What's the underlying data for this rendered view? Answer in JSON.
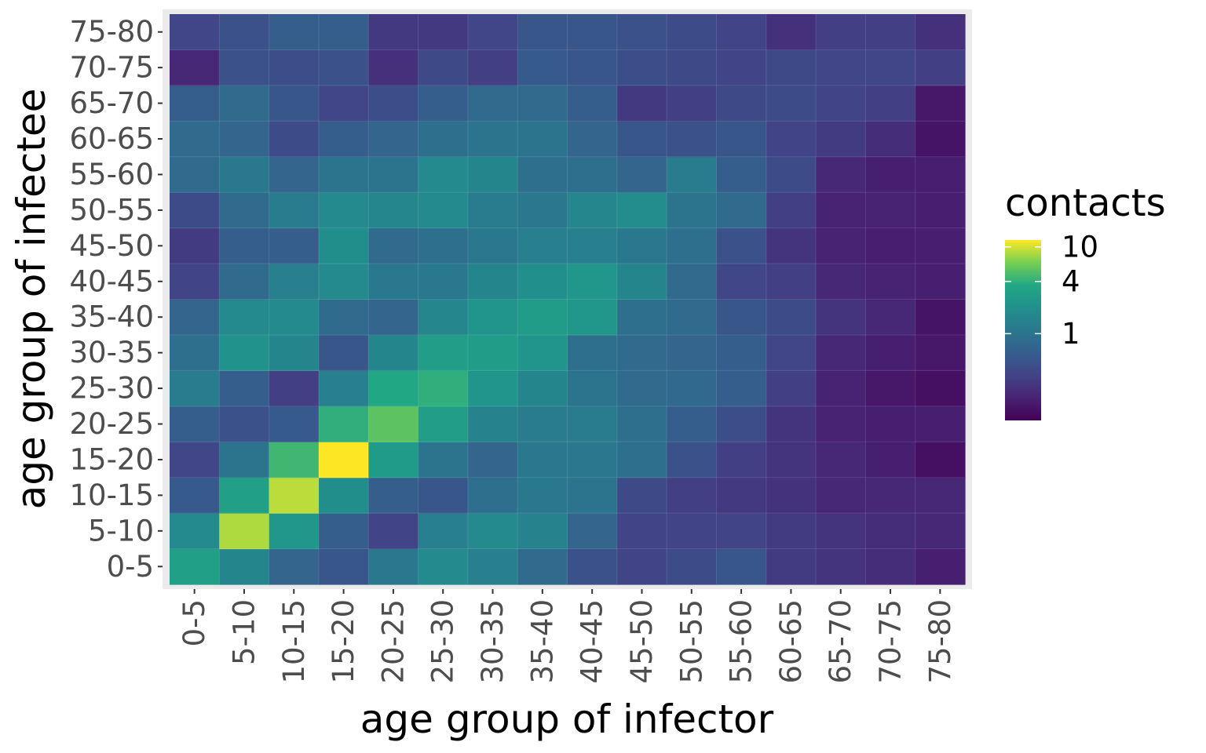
{
  "chart_data": {
    "type": "heatmap",
    "xlabel": "age group of infector",
    "ylabel": "age group of infectee",
    "x_categories": [
      "0-5",
      "5-10",
      "10-15",
      "15-20",
      "20-25",
      "25-30",
      "30-35",
      "35-40",
      "40-45",
      "45-50",
      "50-55",
      "55-60",
      "60-65",
      "65-70",
      "70-75",
      "75-80"
    ],
    "y_categories": [
      "0-5",
      "5-10",
      "10-15",
      "15-20",
      "20-25",
      "25-30",
      "30-35",
      "35-40",
      "40-45",
      "45-50",
      "50-55",
      "55-60",
      "60-65",
      "65-70",
      "70-75",
      "75-80"
    ],
    "color_scale": "viridis",
    "color_transform": "log",
    "legend": {
      "title": "contacts",
      "position": "right",
      "breaks": [
        1,
        4,
        10
      ],
      "labels": [
        "1",
        "4",
        "10"
      ],
      "range": [
        0.1,
        12
      ]
    },
    "grid": true,
    "values": [
      [
        3.0,
        1.5,
        0.7,
        0.5,
        1.1,
        1.7,
        1.3,
        0.8,
        0.45,
        0.33,
        0.4,
        0.5,
        0.28,
        0.25,
        0.22,
        0.17
      ],
      [
        1.7,
        8.5,
        2.3,
        0.6,
        0.33,
        1.3,
        1.7,
        1.4,
        0.7,
        0.33,
        0.33,
        0.33,
        0.28,
        0.25,
        0.22,
        0.2
      ],
      [
        0.55,
        3.0,
        9.0,
        1.9,
        0.6,
        0.5,
        0.9,
        1.1,
        1.0,
        0.38,
        0.3,
        0.27,
        0.24,
        0.2,
        0.2,
        0.2
      ],
      [
        0.35,
        1.0,
        4.5,
        12.0,
        2.6,
        1.0,
        0.7,
        1.1,
        1.1,
        0.9,
        0.45,
        0.3,
        0.25,
        0.2,
        0.17,
        0.13
      ],
      [
        0.6,
        0.45,
        0.55,
        4.0,
        5.5,
        2.8,
        1.4,
        1.2,
        1.2,
        0.9,
        0.6,
        0.42,
        0.25,
        0.18,
        0.17,
        0.17
      ],
      [
        1.2,
        0.6,
        0.3,
        1.3,
        3.5,
        4.0,
        2.2,
        1.5,
        1.0,
        0.8,
        0.75,
        0.6,
        0.3,
        0.18,
        0.15,
        0.13
      ],
      [
        0.9,
        2.1,
        1.5,
        0.5,
        1.5,
        2.8,
        2.7,
        2.2,
        0.9,
        0.8,
        0.7,
        0.6,
        0.35,
        0.2,
        0.17,
        0.15
      ],
      [
        0.7,
        1.7,
        1.7,
        0.8,
        0.7,
        1.6,
        2.2,
        2.7,
        2.3,
        0.9,
        0.8,
        0.5,
        0.4,
        0.25,
        0.2,
        0.14
      ],
      [
        0.33,
        0.8,
        1.3,
        1.7,
        1.1,
        1.1,
        1.5,
        2.0,
        2.3,
        1.5,
        0.8,
        0.35,
        0.3,
        0.2,
        0.18,
        0.17
      ],
      [
        0.28,
        0.6,
        0.6,
        1.9,
        0.8,
        0.9,
        1.1,
        1.3,
        1.3,
        1.1,
        0.9,
        0.45,
        0.25,
        0.18,
        0.17,
        0.17
      ],
      [
        0.4,
        0.8,
        1.2,
        1.7,
        1.6,
        1.7,
        1.2,
        1.1,
        1.6,
        1.8,
        1.0,
        0.8,
        0.3,
        0.18,
        0.18,
        0.17
      ],
      [
        0.8,
        1.1,
        0.7,
        1.0,
        1.0,
        1.7,
        1.5,
        0.9,
        0.9,
        0.7,
        1.2,
        0.6,
        0.4,
        0.2,
        0.17,
        0.17
      ],
      [
        0.8,
        0.7,
        0.4,
        0.6,
        0.7,
        0.9,
        1.0,
        1.0,
        0.7,
        0.5,
        0.45,
        0.5,
        0.33,
        0.28,
        0.22,
        0.14
      ],
      [
        0.6,
        0.8,
        0.5,
        0.35,
        0.42,
        0.6,
        0.8,
        0.8,
        0.6,
        0.27,
        0.3,
        0.38,
        0.4,
        0.33,
        0.3,
        0.15
      ],
      [
        0.2,
        0.45,
        0.42,
        0.45,
        0.23,
        0.38,
        0.3,
        0.55,
        0.5,
        0.42,
        0.38,
        0.33,
        0.38,
        0.35,
        0.35,
        0.3
      ],
      [
        0.35,
        0.45,
        0.6,
        0.6,
        0.27,
        0.27,
        0.35,
        0.5,
        0.5,
        0.45,
        0.4,
        0.33,
        0.23,
        0.3,
        0.3,
        0.23
      ]
    ]
  }
}
